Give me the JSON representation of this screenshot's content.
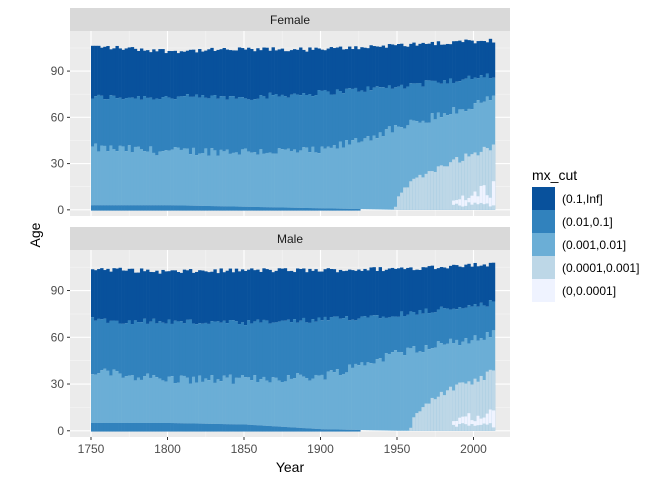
{
  "chart_data": {
    "type": "heatmap",
    "xlabel": "Year",
    "ylabel": "Age",
    "xlim": [
      1750,
      2012
    ],
    "ylim": [
      0,
      110
    ],
    "x_ticks": [
      1750,
      1800,
      1850,
      1900,
      1950,
      2000
    ],
    "y_ticks": [
      0,
      30,
      60,
      90
    ],
    "facets": [
      "Female",
      "Male"
    ],
    "grid": true,
    "legend": {
      "title": "mx_cut",
      "position": "right",
      "entries": [
        "(0.1,Inf]",
        "(0.01,0.1]",
        "(0.001,0.01]",
        "(0.0001,0.001]",
        "(0,0.0001]"
      ]
    },
    "colors": {
      "(0.1,Inf]": "#08519c",
      "(0.01,0.1]": "#3182bd",
      "(0.001,0.01]": "#6baed6",
      "(0.0001,0.001]": "#bdd7e7",
      "(0,0.0001]": "#eff3ff"
    },
    "band_boundaries": {
      "Female": [
        {
          "year": 1750,
          "low": 3,
          "mid_low": 40,
          "mid_high": 73,
          "top": 106
        },
        {
          "year": 1800,
          "low": 3,
          "mid_low": 38,
          "mid_high": 73,
          "top": 103
        },
        {
          "year": 1850,
          "low": 2,
          "mid_low": 38,
          "mid_high": 73,
          "top": 104
        },
        {
          "year": 1900,
          "low": 1,
          "mid_low": 38,
          "mid_high": 76,
          "top": 104
        },
        {
          "year": 1950,
          "low": 0,
          "mid_low": 53,
          "mid_high": 80,
          "top": 107
        },
        {
          "year": 2012,
          "low": 0,
          "mid_low": 72,
          "mid_high": 87,
          "top": 110
        }
      ],
      "Male": [
        {
          "year": 1750,
          "low": 5,
          "mid_low": 38,
          "mid_high": 71,
          "top": 104
        },
        {
          "year": 1800,
          "low": 5,
          "mid_low": 33,
          "mid_high": 70,
          "top": 102
        },
        {
          "year": 1850,
          "low": 4,
          "mid_low": 33,
          "mid_high": 69,
          "top": 103
        },
        {
          "year": 1900,
          "low": 1,
          "mid_low": 35,
          "mid_high": 71,
          "top": 103
        },
        {
          "year": 1950,
          "low": 0,
          "mid_low": 50,
          "mid_high": 75,
          "top": 104
        },
        {
          "year": 2012,
          "low": 0,
          "mid_low": 62,
          "mid_high": 82,
          "top": 107
        }
      ]
    },
    "lightest_region": {
      "Female": {
        "year_start": 1948,
        "peak_age": 42
      },
      "Male": {
        "year_start": 1958,
        "peak_age": 38
      }
    }
  }
}
